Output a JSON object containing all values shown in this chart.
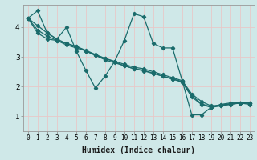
{
  "xlabel": "Humidex (Indice chaleur)",
  "ylabel": "",
  "xlim": [
    -0.5,
    23.5
  ],
  "ylim": [
    0.5,
    4.75
  ],
  "background_color": "#cfe8e8",
  "grid_color": "#e8c8c8",
  "line_color": "#1a6b6b",
  "lines": [
    [
      4.3,
      4.55,
      3.8,
      3.6,
      4.0,
      3.2,
      2.55,
      1.95,
      2.35,
      2.85,
      3.55,
      4.45,
      4.35,
      3.45,
      3.3,
      3.3,
      2.2,
      1.05,
      1.05,
      1.3,
      1.4,
      1.45,
      1.45,
      1.4
    ],
    [
      4.3,
      3.8,
      3.6,
      3.55,
      3.4,
      3.3,
      3.2,
      3.05,
      2.9,
      2.8,
      2.7,
      2.6,
      2.55,
      2.45,
      2.35,
      2.25,
      2.15,
      1.65,
      1.4,
      1.3,
      1.35,
      1.4,
      1.45,
      1.45
    ],
    [
      4.3,
      3.9,
      3.7,
      3.55,
      3.45,
      3.35,
      3.2,
      3.05,
      2.95,
      2.85,
      2.75,
      2.65,
      2.6,
      2.5,
      2.4,
      2.3,
      2.2,
      1.75,
      1.5,
      1.35,
      1.38,
      1.42,
      1.45,
      1.45
    ],
    [
      4.3,
      4.05,
      3.8,
      3.6,
      3.45,
      3.35,
      3.22,
      3.08,
      2.95,
      2.83,
      2.7,
      2.6,
      2.53,
      2.44,
      2.35,
      2.26,
      2.17,
      1.7,
      1.42,
      1.32,
      1.37,
      1.41,
      1.44,
      1.44
    ]
  ],
  "yticks": [
    1,
    2,
    3,
    4
  ],
  "xticks": [
    0,
    1,
    2,
    3,
    4,
    5,
    6,
    7,
    8,
    9,
    10,
    11,
    12,
    13,
    14,
    15,
    16,
    17,
    18,
    19,
    20,
    21,
    22,
    23
  ],
  "xtick_labels": [
    "0",
    "1",
    "2",
    "3",
    "4",
    "5",
    "6",
    "7",
    "8",
    "9",
    "10",
    "11",
    "12",
    "13",
    "14",
    "15",
    "16",
    "17",
    "18",
    "19",
    "20",
    "21",
    "22",
    "23"
  ],
  "marker": "D",
  "marker_size": 2.2,
  "line_width": 0.9,
  "tick_fontsize": 5.5,
  "ytick_fontsize": 6.5,
  "xlabel_fontsize": 7.0
}
